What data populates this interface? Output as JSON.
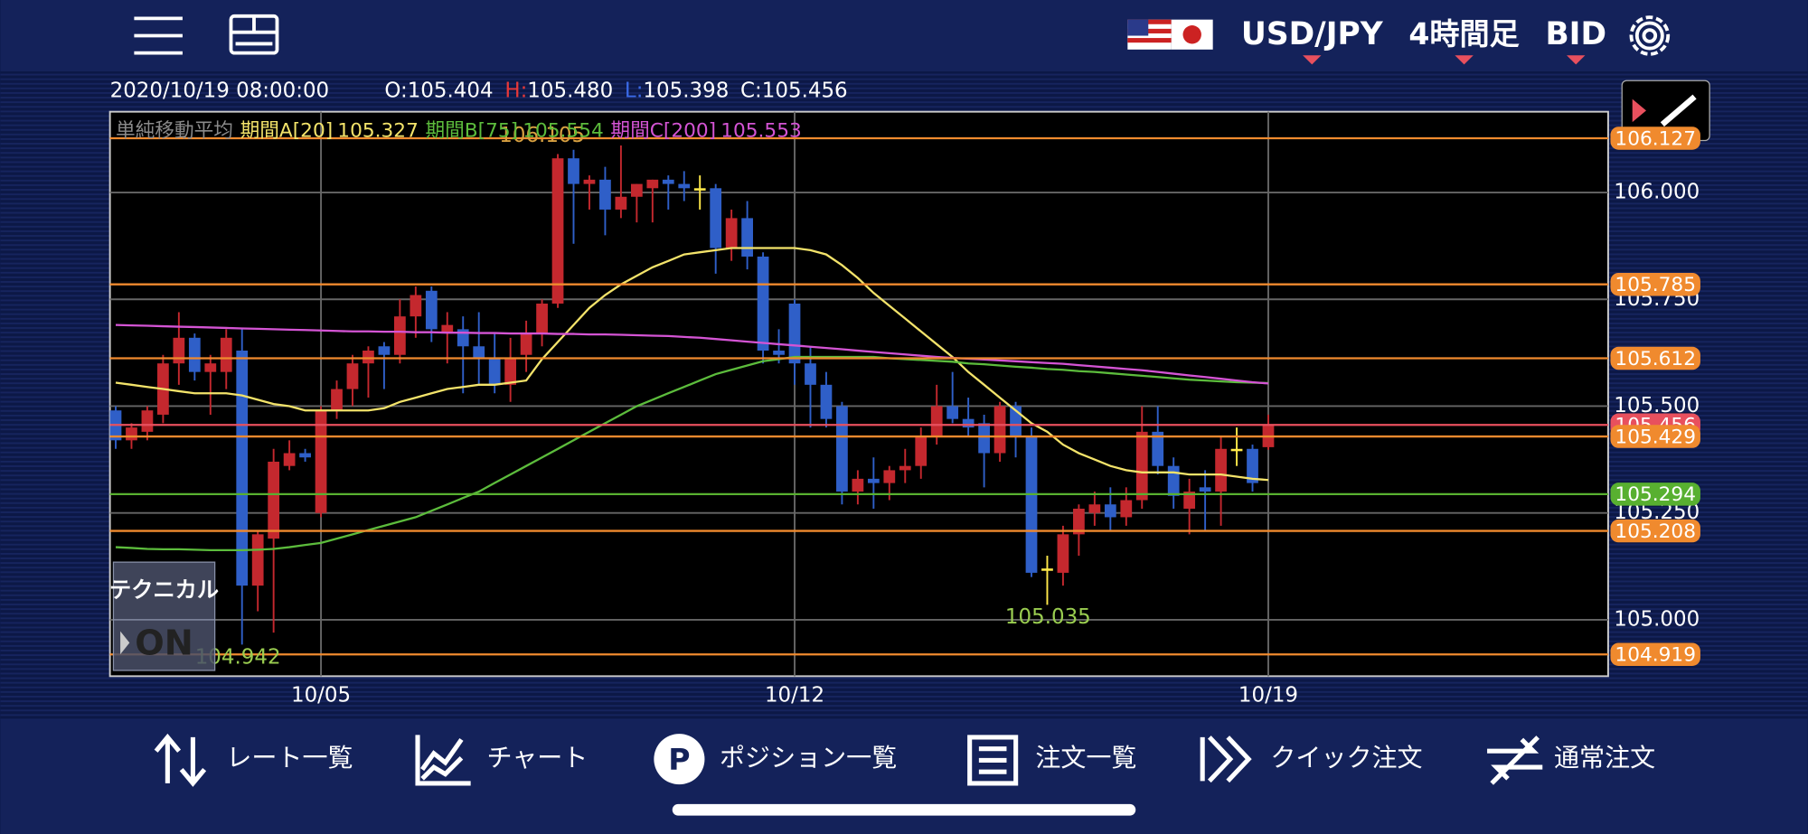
{
  "header": {
    "pair": "USD/JPY",
    "timeframe": "4時間足",
    "side": "BID"
  },
  "info": {
    "datetime": "2020/10/19 08:00:00",
    "ohlc": [
      {
        "label": "O:",
        "value": "105.404"
      },
      {
        "label": "H:",
        "value": "105.480"
      },
      {
        "label": "L:",
        "value": "105.398"
      },
      {
        "label": "C:",
        "value": "105.456"
      }
    ]
  },
  "chart_data": {
    "type": "candlestick",
    "categories": [
      null,
      null,
      null,
      null,
      null,
      null,
      null,
      null,
      null,
      null,
      null,
      null,
      null,
      "10/05",
      null,
      null,
      null,
      null,
      null,
      null,
      null,
      null,
      null,
      null,
      null,
      null,
      null,
      null,
      null,
      null,
      null,
      null,
      null,
      null,
      null,
      null,
      null,
      null,
      null,
      null,
      null,
      null,
      null,
      "10/12",
      null,
      null,
      null,
      null,
      null,
      null,
      null,
      null,
      null,
      null,
      null,
      null,
      null,
      null,
      null,
      null,
      null,
      null,
      null,
      null,
      null,
      null,
      null,
      null,
      null,
      null,
      null,
      null,
      null,
      "10/19"
    ],
    "open": [
      105.49,
      105.42,
      105.44,
      105.48,
      105.6,
      105.66,
      105.58,
      105.58,
      105.63,
      105.08,
      105.19,
      105.36,
      105.39,
      105.25,
      105.49,
      105.54,
      105.6,
      105.64,
      105.62,
      105.71,
      105.77,
      105.67,
      105.68,
      105.64,
      105.61,
      105.55,
      105.62,
      105.67,
      105.74,
      106.08,
      106.02,
      106.03,
      105.96,
      105.99,
      106.01,
      106.03,
      106.02,
      106.01,
      106.01,
      105.87,
      105.94,
      105.85,
      105.63,
      105.74,
      105.6,
      105.55,
      105.5,
      105.3,
      105.33,
      105.32,
      105.35,
      105.36,
      105.43,
      105.5,
      105.47,
      105.46,
      105.39,
      105.5,
      105.43,
      105.12,
      105.11,
      105.2,
      105.25,
      105.27,
      105.24,
      105.28,
      105.44,
      105.36,
      105.26,
      105.31,
      105.3,
      105.4,
      105.4,
      105.404
    ],
    "high": [
      105.5,
      105.46,
      105.5,
      105.62,
      105.72,
      105.67,
      105.62,
      105.68,
      105.68,
      105.21,
      105.4,
      105.42,
      105.4,
      105.5,
      105.56,
      105.62,
      105.64,
      105.65,
      105.75,
      105.78,
      105.78,
      105.72,
      105.71,
      105.72,
      105.67,
      105.66,
      105.7,
      105.75,
      106.09,
      106.1,
      106.04,
      106.06,
      106.11,
      106.02,
      106.03,
      106.04,
      106.05,
      106.04,
      106.02,
      105.96,
      105.98,
      105.86,
      105.68,
      105.75,
      105.64,
      105.58,
      105.51,
      105.35,
      105.38,
      105.36,
      105.4,
      105.45,
      105.55,
      105.58,
      105.52,
      105.48,
      105.51,
      105.51,
      105.45,
      105.15,
      105.22,
      105.27,
      105.3,
      105.31,
      105.31,
      105.5,
      105.5,
      105.38,
      105.33,
      105.35,
      105.43,
      105.45,
      105.41,
      105.48
    ],
    "low": [
      105.4,
      105.4,
      105.42,
      105.46,
      105.55,
      105.56,
      105.48,
      105.54,
      104.942,
      105.02,
      104.97,
      105.35,
      105.37,
      105.24,
      105.47,
      105.5,
      105.52,
      105.54,
      105.6,
      105.66,
      105.65,
      105.6,
      105.53,
      105.55,
      105.53,
      105.51,
      105.58,
      105.64,
      105.73,
      105.88,
      105.96,
      105.9,
      105.94,
      105.93,
      105.93,
      105.96,
      105.98,
      105.96,
      105.81,
      105.84,
      105.82,
      105.6,
      105.6,
      105.55,
      105.45,
      105.45,
      105.27,
      105.27,
      105.26,
      105.28,
      105.32,
      105.33,
      105.41,
      105.46,
      105.43,
      105.31,
      105.37,
      105.38,
      105.1,
      105.035,
      105.08,
      105.15,
      105.22,
      105.21,
      105.22,
      105.26,
      105.34,
      105.26,
      105.2,
      105.21,
      105.22,
      105.36,
      105.3,
      105.398
    ],
    "close": [
      105.42,
      105.45,
      105.49,
      105.6,
      105.66,
      105.58,
      105.6,
      105.66,
      105.08,
      105.2,
      105.37,
      105.39,
      105.38,
      105.49,
      105.54,
      105.6,
      105.63,
      105.62,
      105.71,
      105.76,
      105.68,
      105.69,
      105.64,
      105.61,
      105.55,
      105.61,
      105.67,
      105.74,
      106.08,
      106.02,
      106.03,
      105.96,
      105.99,
      106.02,
      106.03,
      106.02,
      106.01,
      106.01,
      105.87,
      105.94,
      105.85,
      105.63,
      105.62,
      105.6,
      105.55,
      105.47,
      105.3,
      105.33,
      105.32,
      105.35,
      105.36,
      105.43,
      105.5,
      105.47,
      105.45,
      105.39,
      105.5,
      105.43,
      105.11,
      105.12,
      105.2,
      105.26,
      105.27,
      105.24,
      105.28,
      105.44,
      105.36,
      105.29,
      105.3,
      105.3,
      105.4,
      105.4,
      105.32,
      105.456
    ],
    "up_color": "#c4282e",
    "down_color": "#2f5fc8",
    "doji_color": "#ffe94a",
    "legend_title": "単純移動平均",
    "series": [
      {
        "name": "期間A[20]",
        "value_label": "105.327",
        "color": "#f3e36a",
        "values": [
          105.555,
          105.55,
          105.545,
          105.54,
          105.535,
          105.53,
          105.53,
          105.53,
          105.525,
          105.515,
          105.505,
          105.5,
          105.49,
          105.49,
          105.49,
          105.49,
          105.49,
          105.495,
          105.51,
          105.52,
          105.53,
          105.54,
          105.545,
          105.55,
          105.55,
          105.555,
          105.56,
          105.61,
          105.65,
          105.69,
          105.73,
          105.76,
          105.785,
          105.805,
          105.825,
          105.84,
          105.855,
          105.86,
          105.865,
          105.87,
          105.87,
          105.87,
          105.87,
          105.87,
          105.865,
          105.855,
          105.83,
          105.8,
          105.765,
          105.735,
          105.705,
          105.675,
          105.645,
          105.615,
          105.58,
          105.55,
          105.52,
          105.49,
          105.46,
          105.44,
          105.41,
          105.39,
          105.375,
          105.36,
          105.35,
          105.345,
          105.345,
          105.345,
          105.34,
          105.34,
          105.34,
          105.335,
          105.33,
          105.327
        ]
      },
      {
        "name": "期間B[75]",
        "value_label": "105.554",
        "color": "#5cbc3c",
        "values": [
          105.17,
          105.168,
          105.166,
          105.165,
          105.165,
          105.164,
          105.163,
          105.163,
          105.163,
          105.164,
          105.166,
          105.17,
          105.175,
          105.18,
          105.19,
          105.2,
          105.21,
          105.22,
          105.23,
          105.24,
          105.255,
          105.27,
          105.285,
          105.3,
          105.32,
          105.34,
          105.36,
          105.38,
          105.4,
          105.42,
          105.44,
          105.46,
          105.48,
          105.5,
          105.515,
          105.53,
          105.545,
          105.56,
          105.575,
          105.585,
          105.595,
          105.605,
          105.61,
          105.615,
          105.615,
          105.615,
          105.615,
          105.615,
          105.615,
          105.612,
          105.61,
          105.608,
          105.606,
          105.604,
          105.6,
          105.598,
          105.595,
          105.592,
          105.59,
          105.587,
          105.585,
          105.582,
          105.58,
          105.577,
          105.574,
          105.571,
          105.568,
          105.565,
          105.562,
          105.56,
          105.558,
          105.556,
          105.555,
          105.554
        ]
      },
      {
        "name": "期間C[200]",
        "value_label": "105.553",
        "color": "#d454d4",
        "values": [
          105.69,
          105.689,
          105.688,
          105.687,
          105.686,
          105.685,
          105.684,
          105.683,
          105.682,
          105.681,
          105.68,
          105.679,
          105.678,
          105.677,
          105.676,
          105.675,
          105.675,
          105.674,
          105.674,
          105.673,
          105.673,
          105.672,
          105.672,
          105.671,
          105.671,
          105.67,
          105.67,
          105.67,
          105.669,
          105.669,
          105.668,
          105.668,
          105.667,
          105.666,
          105.665,
          105.664,
          105.662,
          105.66,
          105.657,
          105.654,
          105.651,
          105.648,
          105.645,
          105.642,
          105.639,
          105.636,
          105.633,
          105.63,
          105.627,
          105.624,
          105.621,
          105.618,
          105.615,
          105.613,
          105.611,
          105.609,
          105.607,
          105.605,
          105.603,
          105.601,
          105.599,
          105.596,
          105.593,
          105.59,
          105.587,
          105.584,
          105.58,
          105.576,
          105.572,
          105.568,
          105.564,
          105.56,
          105.556,
          105.553
        ]
      }
    ],
    "price_lines": [
      {
        "value": 105.456,
        "color": "#e8505e"
      },
      {
        "value": 106.127,
        "color": "#f08a2e"
      },
      {
        "value": 105.785,
        "color": "#f08a2e"
      },
      {
        "value": 105.612,
        "color": "#f08a2e"
      },
      {
        "value": 105.429,
        "color": "#f08a2e"
      },
      {
        "value": 105.294,
        "color": "#58b030"
      },
      {
        "value": 105.208,
        "color": "#f08a2e"
      },
      {
        "value": 104.919,
        "color": "#f08a2e"
      }
    ],
    "annotations": [
      106.105,
      104.942,
      105.035
    ],
    "ylim": [
      104.868,
      106.189
    ],
    "yticks": [
      {
        "value": 106,
        "label": "106.000"
      },
      {
        "value": 105.75,
        "label": "105.750"
      },
      {
        "value": 105.5,
        "label": "105.500"
      },
      {
        "value": 105.25,
        "label": "105.250"
      },
      {
        "value": 105,
        "label": "105.000"
      }
    ],
    "grid": true
  },
  "technical": {
    "label": "テクニカル",
    "state": "ON"
  },
  "nav": [
    "レート一覧",
    "チャート",
    "ポジション一覧",
    "注文一覧",
    "クイック注文",
    "通常注文"
  ]
}
